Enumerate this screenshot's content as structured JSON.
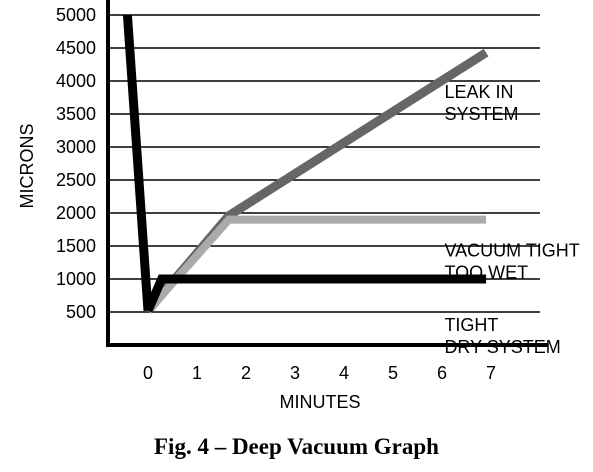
{
  "chart_data": {
    "type": "line",
    "title": "",
    "caption": "Fig. 4 – Deep Vacuum Graph",
    "xlabel": "MINUTES",
    "ylabel": "MICRONS",
    "xlim": [
      -0.8,
      8
    ],
    "ylim": [
      0,
      5000
    ],
    "x_ticks": [
      0,
      1,
      2,
      3,
      4,
      5,
      6,
      7
    ],
    "y_ticks": [
      500,
      1000,
      1500,
      2000,
      2500,
      3000,
      3500,
      4000,
      4500,
      5000
    ],
    "grid": "horizontal",
    "initial_pulldown": {
      "x": [
        -0.42,
        0
      ],
      "y": [
        5000,
        520
      ],
      "color": "#000000"
    },
    "series": [
      {
        "label_lines": [
          "LEAK IN",
          "SYSTEM"
        ],
        "color": "#666666",
        "x": [
          0,
          1.65,
          6.9
        ],
        "y": [
          520,
          1960,
          4430
        ],
        "label_pos": {
          "x": 6.05,
          "y": 3740
        }
      },
      {
        "label_lines": [
          "VACUUM TIGHT",
          "TOO WET"
        ],
        "color": "#aaaaaa",
        "x": [
          0,
          1.65,
          6.9
        ],
        "y": [
          520,
          1900,
          1900
        ],
        "label_pos": {
          "x": 6.05,
          "y": 1340
        }
      },
      {
        "label_lines": [
          "TIGHT",
          "DRY SYSTEM"
        ],
        "color": "#000000",
        "x": [
          0,
          0.28,
          6.9
        ],
        "y": [
          520,
          1000,
          1000
        ],
        "label_pos": {
          "x": 6.05,
          "y": 210
        }
      }
    ]
  }
}
